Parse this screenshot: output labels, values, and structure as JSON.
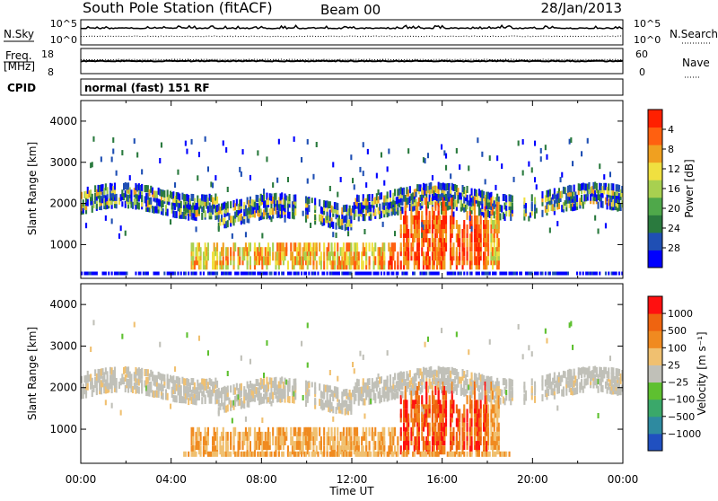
{
  "header": {
    "title": "South Pole Station (fitACF)",
    "beam": "Beam 00",
    "date": "28/Jan/2013"
  },
  "strip": {
    "nsky_label": "N.Sky",
    "nsearch_label": "N.Search",
    "noise_ticks": [
      "10^5",
      "10^0"
    ],
    "freq_label": "Freq.",
    "freq_unit": "[MHz]",
    "freq_ticks": [
      "18",
      "8"
    ],
    "nave_label": "Nave",
    "nave_ticks": [
      "60",
      "0"
    ],
    "cpid_label": "CPID",
    "cpid_value": "normal (fast) 151 RF"
  },
  "chart_data": [
    {
      "type": "heatmap",
      "name": "power",
      "ylabel": "Slant Range [km]",
      "xlabel": "Time UT",
      "x_ticks": [
        "00:00",
        "04:00",
        "08:00",
        "12:00",
        "16:00",
        "20:00",
        "00:00"
      ],
      "xlim_hours": [
        0,
        24
      ],
      "ylim": [
        180,
        4500
      ],
      "y_ticks": [
        1000,
        2000,
        3000,
        4000
      ],
      "colorbar": {
        "label": "Power [dB]",
        "ticks": [
          "4",
          "8",
          "12",
          "16",
          "20",
          "24",
          "28"
        ],
        "colors": [
          "#0000ff",
          "#1f4fb4",
          "#2a7a3e",
          "#4fa84a",
          "#a8d050",
          "#f0e040",
          "#f0a020",
          "#ff6010",
          "#ff2000"
        ]
      }
    },
    {
      "type": "heatmap",
      "name": "velocity",
      "ylabel": "Slant Range [km]",
      "xlabel": "Time UT",
      "x_ticks": [
        "00:00",
        "04:00",
        "08:00",
        "12:00",
        "16:00",
        "20:00",
        "00:00"
      ],
      "xlim_hours": [
        0,
        24
      ],
      "ylim": [
        180,
        4500
      ],
      "y_ticks": [
        1000,
        2000,
        3000,
        4000
      ],
      "colorbar": {
        "label": "Velocity [m s⁻¹]",
        "ticks": [
          "1000",
          "500",
          "100",
          "25",
          "−25",
          "−100",
          "−500",
          "−1000"
        ],
        "colors": [
          "#2050c0",
          "#2e8aa0",
          "#3aa86a",
          "#5ec030",
          "#c0c0b8",
          "#f0c070",
          "#f08a20",
          "#ef6410",
          "#ff1010"
        ]
      }
    }
  ],
  "axis": {
    "time_ticks": [
      "00:00",
      "04:00",
      "08:00",
      "12:00",
      "16:00",
      "20:00",
      "00:00"
    ],
    "xlabel": "Time UT"
  }
}
